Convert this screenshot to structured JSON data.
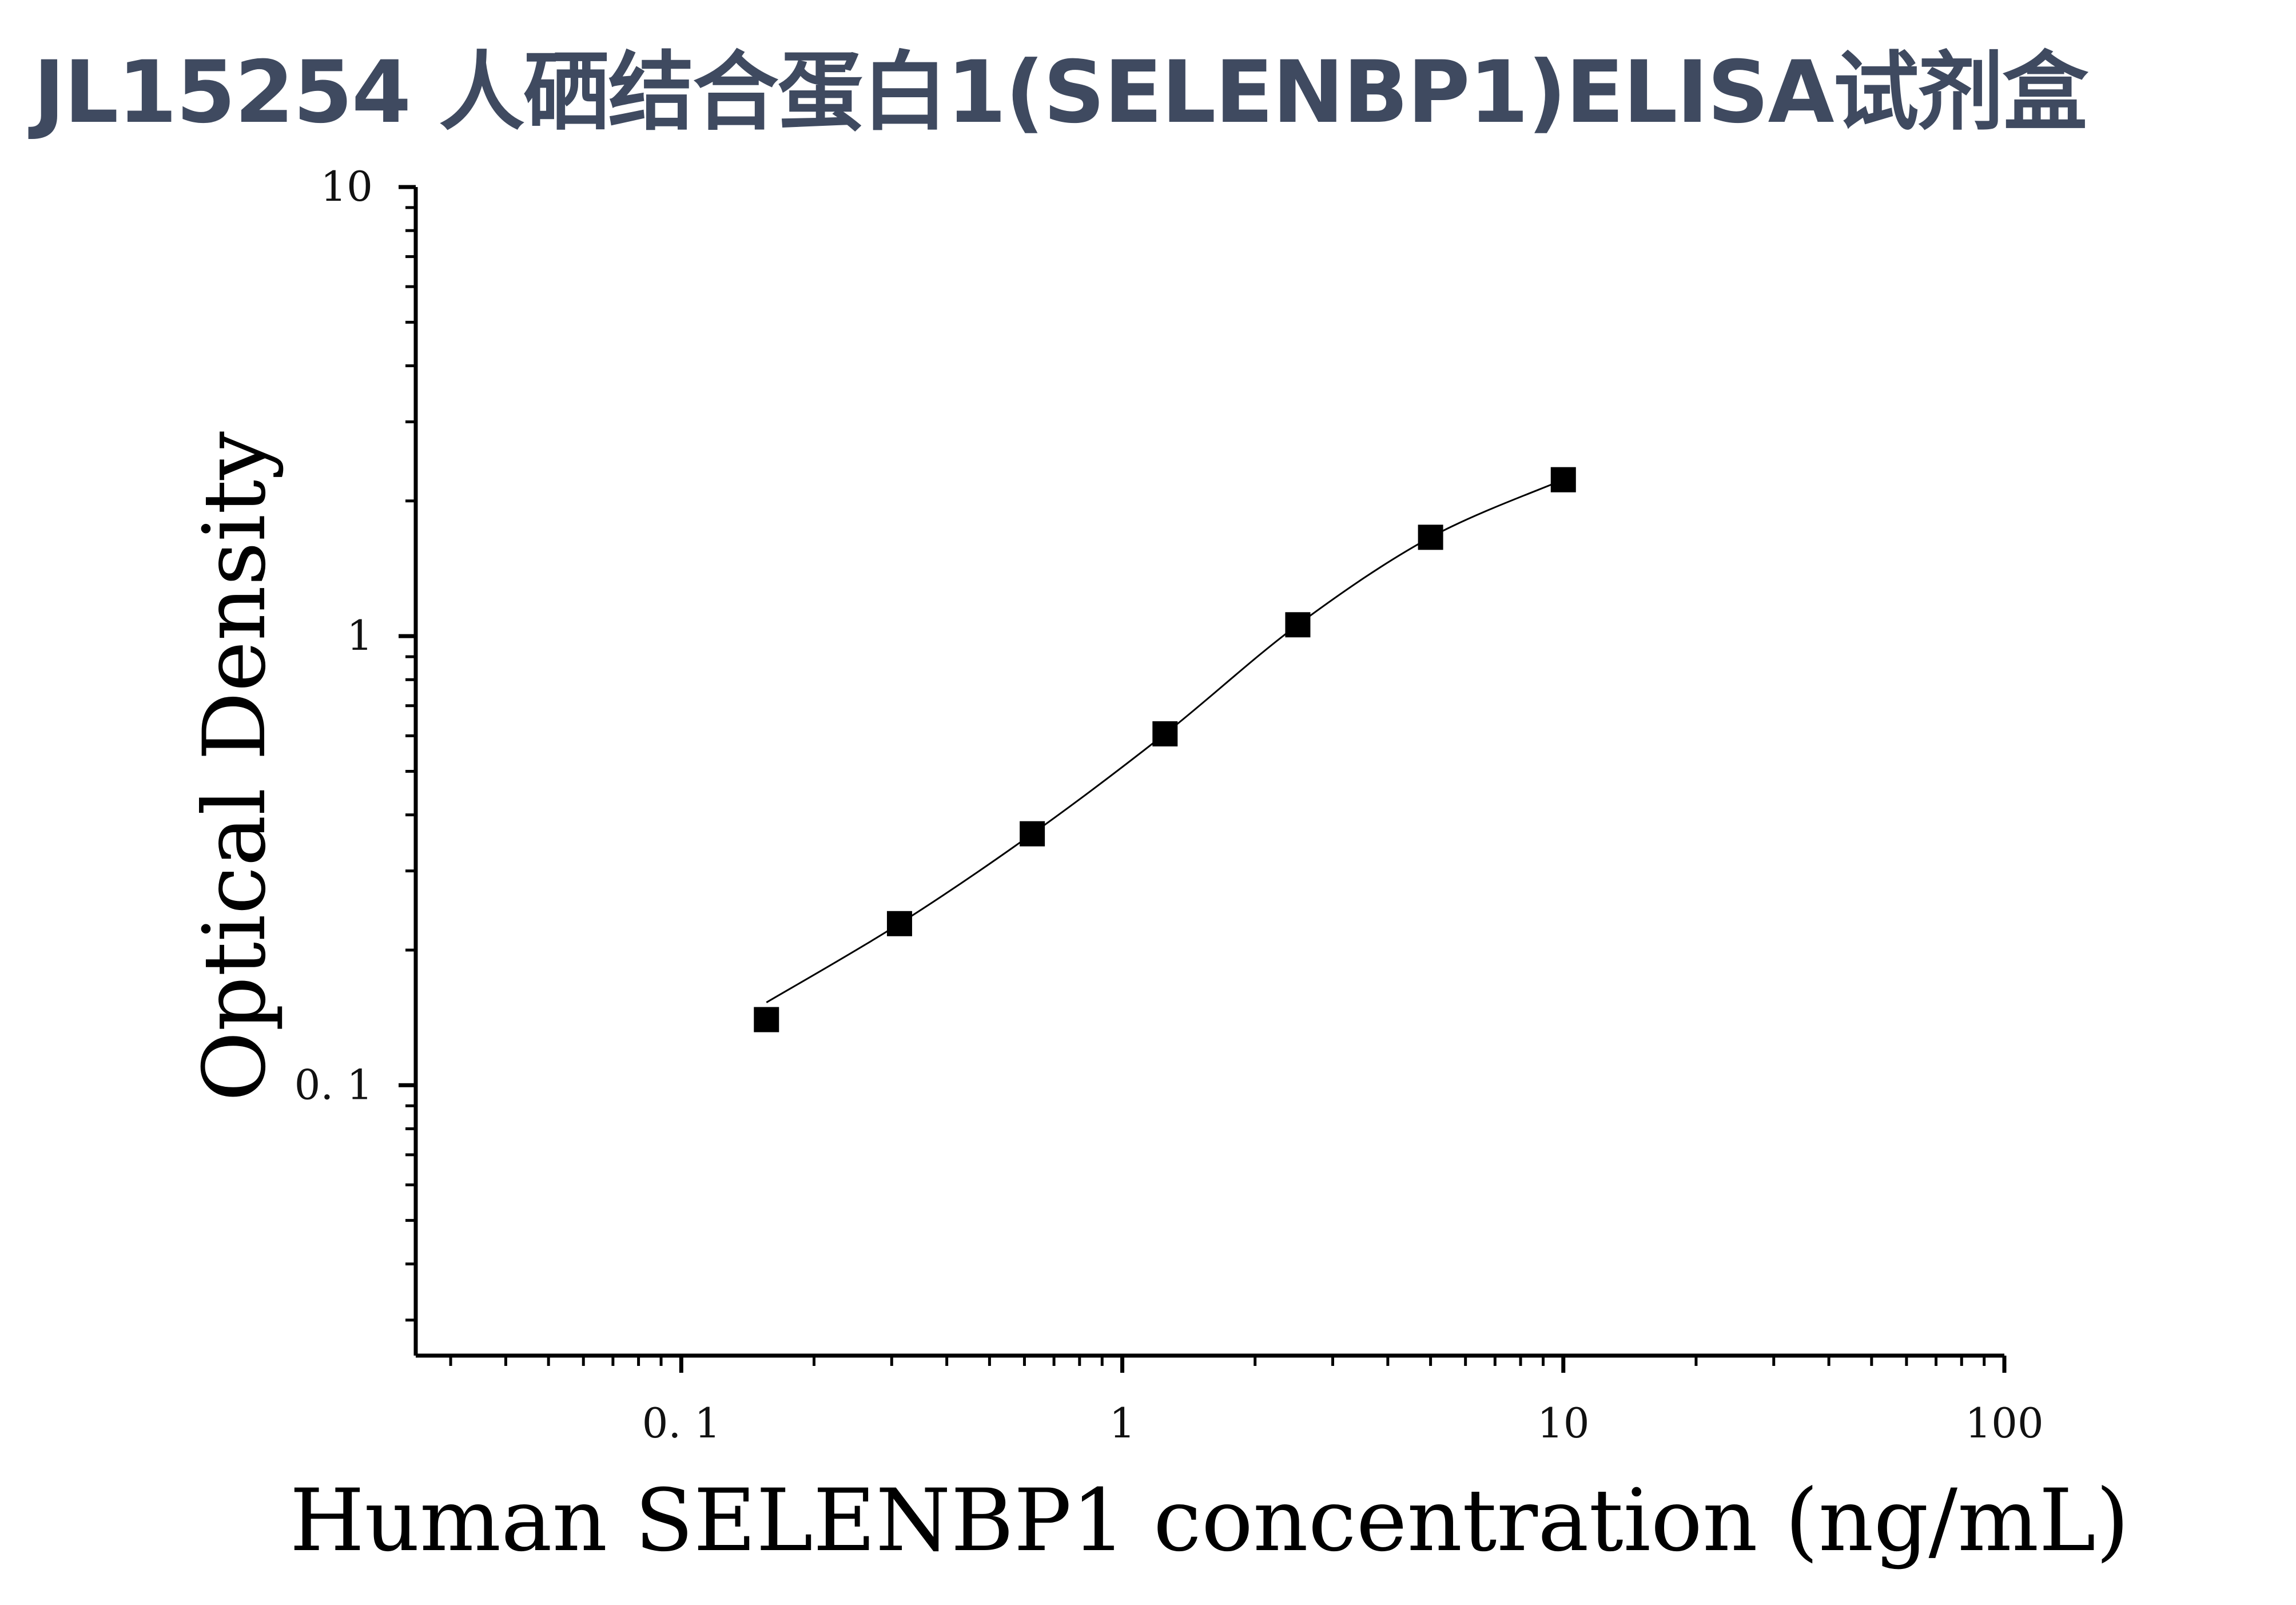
{
  "title": "JL15254 人硒结合蛋白1(SELENBP1)ELISA试剂盒",
  "chart_data": {
    "type": "scatter",
    "title": "JL15254 人硒结合蛋白1(SELENBP1)ELISA试剂盒",
    "xlabel": "Human SELENBP1 concentration (ng/mL)",
    "ylabel": "Optical Density",
    "xscale": "log",
    "yscale": "log",
    "xlim": [
      0.025,
      100
    ],
    "ylim": [
      0.025,
      10
    ],
    "x_ticks": [
      {
        "value": 0.1,
        "label": "0. 1"
      },
      {
        "value": 1,
        "label": "1"
      },
      {
        "value": 10,
        "label": "10"
      },
      {
        "value": 100,
        "label": "100"
      }
    ],
    "y_ticks": [
      {
        "value": 0.1,
        "label": "0. 1"
      },
      {
        "value": 1,
        "label": "1"
      },
      {
        "value": 10,
        "label": "10"
      }
    ],
    "grid": false,
    "marker": "square",
    "fit_curve": true,
    "series": [
      {
        "x": [
          0.156,
          0.3125,
          0.625,
          1.25,
          2.5,
          5,
          10
        ],
        "y": [
          0.14,
          0.229,
          0.363,
          0.606,
          1.06,
          1.66,
          2.23
        ]
      }
    ]
  }
}
